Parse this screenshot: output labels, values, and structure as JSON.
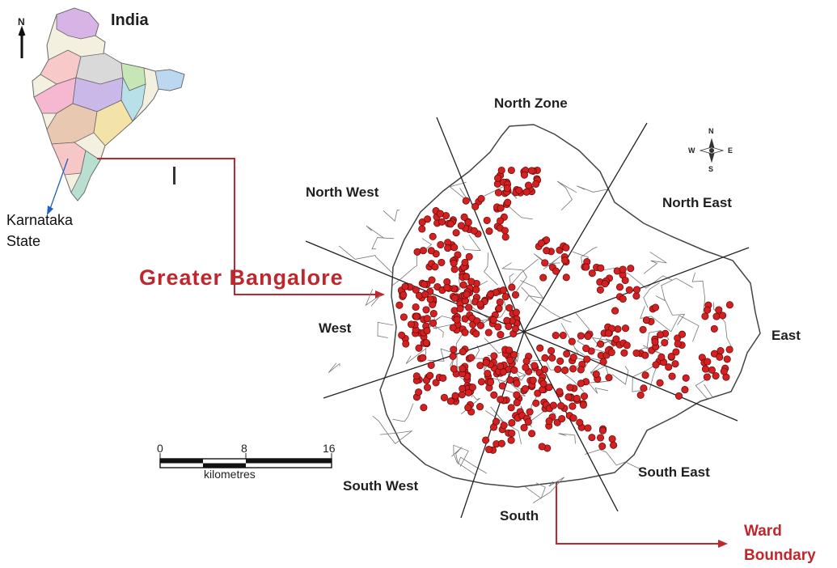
{
  "inset": {
    "title": "India",
    "north_letter": "N",
    "state_label_line1": "Karnataka",
    "state_label_line2": "State"
  },
  "main_label": "Greater Bangalore",
  "zones": {
    "north": "North Zone",
    "north_west": "North West",
    "north_east": "North East",
    "west": "West",
    "east": "East",
    "south_west": "South West",
    "south": "South",
    "south_east": "South East"
  },
  "ward_label_line1": "Ward",
  "ward_label_line2": "Boundary",
  "scale": {
    "ticks": [
      "0",
      "8",
      "16"
    ],
    "unit": "kilometres"
  },
  "compass": {
    "n": "N",
    "s": "S",
    "e": "E",
    "w": "W"
  },
  "colors": {
    "accent_red": "#c0272d",
    "point_fill": "#d42020",
    "boundary": "#555555"
  }
}
